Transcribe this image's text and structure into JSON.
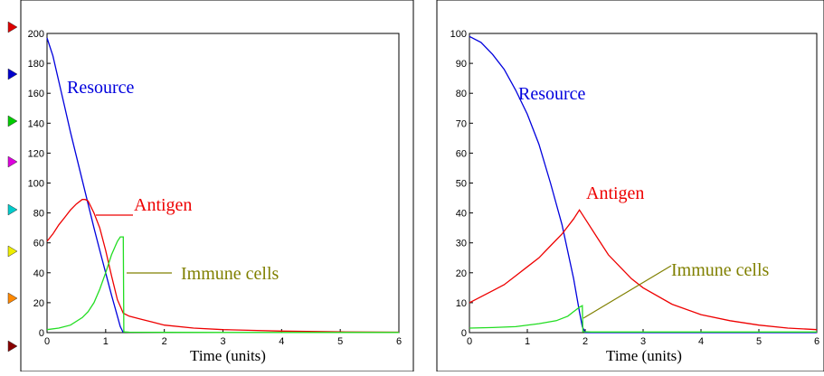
{
  "chart_data": [
    {
      "type": "line",
      "xlabel": "Time (units)",
      "xlim": [
        0,
        6
      ],
      "ylim": [
        0,
        200
      ],
      "x_ticks": [
        "0",
        "1",
        "2",
        "3",
        "4",
        "5",
        "6"
      ],
      "y_ticks": [
        "0",
        "20",
        "40",
        "60",
        "80",
        "100",
        "120",
        "140",
        "160",
        "180",
        "200"
      ],
      "series": [
        {
          "name": "Resource",
          "color": "#0000dd",
          "x": [
            0,
            0.1,
            0.2,
            0.3,
            0.4,
            0.5,
            0.6,
            0.7,
            0.8,
            0.9,
            1.0,
            1.1,
            1.2,
            1.25,
            1.3
          ],
          "y": [
            197,
            185,
            168,
            151,
            134,
            118,
            102,
            86,
            70,
            55,
            40,
            25,
            11,
            4,
            0
          ]
        },
        {
          "name": "Antigen",
          "color": "#ee0000",
          "x": [
            0,
            0.1,
            0.2,
            0.3,
            0.4,
            0.5,
            0.6,
            0.65,
            0.7,
            0.8,
            0.9,
            1.0,
            1.1,
            1.2,
            1.3,
            1.4,
            1.6,
            1.8,
            2.0,
            2.5,
            3.0,
            3.5,
            4.0,
            5.0,
            6.0
          ],
          "y": [
            61,
            66,
            72,
            77,
            82,
            86,
            89,
            89,
            88,
            80,
            70,
            55,
            38,
            22,
            13,
            11,
            9,
            7,
            5,
            3,
            2,
            1.5,
            1,
            0.5,
            0.3
          ]
        },
        {
          "name": "Immune cells",
          "color": "#22dd22",
          "x": [
            0,
            0.2,
            0.4,
            0.6,
            0.7,
            0.8,
            0.9,
            1.0,
            1.1,
            1.2,
            1.25,
            1.3,
            1.31,
            1.4,
            2.0,
            3.0,
            4.0,
            5.0,
            6.0
          ],
          "y": [
            2,
            3,
            5,
            10,
            14,
            20,
            29,
            40,
            52,
            61,
            64,
            64,
            0.5,
            0.3,
            0.2,
            0.1,
            0.1,
            0.1,
            0.1
          ]
        }
      ],
      "annotations": [
        {
          "text": "Resource",
          "color": "#0000dd"
        },
        {
          "text": "Antigen",
          "color": "#ee0000"
        },
        {
          "text": "Immune cells",
          "color": "#808000"
        }
      ]
    },
    {
      "type": "line",
      "xlabel": "Time (units)",
      "xlim": [
        0,
        6
      ],
      "ylim": [
        0,
        100
      ],
      "x_ticks": [
        "0",
        "1",
        "2",
        "3",
        "4",
        "5",
        "6"
      ],
      "y_ticks": [
        "0",
        "10",
        "20",
        "30",
        "40",
        "50",
        "60",
        "70",
        "80",
        "90",
        "100"
      ],
      "series": [
        {
          "name": "Resource",
          "color": "#0000dd",
          "x": [
            0,
            0.2,
            0.4,
            0.6,
            0.8,
            1.0,
            1.2,
            1.4,
            1.6,
            1.8,
            1.9,
            1.95,
            2.0,
            6.0
          ],
          "y": [
            99,
            97,
            93,
            88,
            81,
            73,
            63,
            50,
            36,
            18,
            7,
            2,
            0,
            0
          ]
        },
        {
          "name": "Antigen",
          "color": "#ee0000",
          "x": [
            0,
            0.2,
            0.4,
            0.6,
            0.8,
            1.0,
            1.2,
            1.4,
            1.6,
            1.8,
            1.9,
            2.0,
            2.2,
            2.4,
            2.6,
            2.8,
            3.0,
            3.5,
            4.0,
            4.5,
            5.0,
            5.5,
            6.0
          ],
          "y": [
            10,
            12,
            14,
            16,
            19,
            22,
            25,
            29,
            33,
            38,
            41,
            38,
            32,
            26,
            22,
            18,
            15,
            9.5,
            6,
            4,
            2.5,
            1.5,
            1
          ]
        },
        {
          "name": "Immune cells",
          "color": "#22dd22",
          "x": [
            0,
            0.4,
            0.8,
            1.2,
            1.5,
            1.7,
            1.8,
            1.9,
            1.95,
            1.96,
            2.1,
            3.0,
            4.0,
            5.0,
            6.0
          ],
          "y": [
            1.5,
            1.7,
            2,
            3,
            4,
            5.5,
            7,
            8.5,
            9,
            0.3,
            0.2,
            0.2,
            0.2,
            0.2,
            0.2
          ]
        }
      ],
      "annotations": [
        {
          "text": "Resource",
          "color": "#0000dd"
        },
        {
          "text": "Antigen",
          "color": "#ee0000"
        },
        {
          "text": "Immune cells",
          "color": "#808000"
        }
      ]
    }
  ],
  "left_markers": [
    "#dd0000",
    "#0000cc",
    "#00cc00",
    "#dd00dd",
    "#00cccc",
    "#eeee00",
    "#ff8800",
    "#880000"
  ]
}
